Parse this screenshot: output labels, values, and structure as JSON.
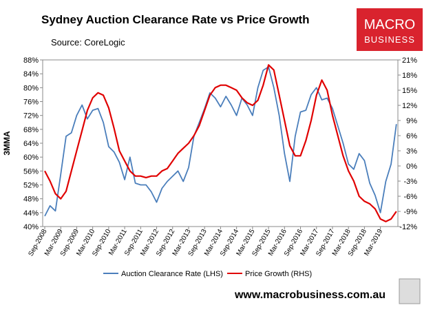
{
  "chart_data": {
    "type": "line",
    "title": "Sydney Auction Clearance Rate vs Price Growth",
    "subtitle": "Source: CoreLogic",
    "y_label": "3MMA",
    "categories": [
      "Sep-2008",
      null,
      null,
      "Mar-2009",
      null,
      null,
      "Sep-2009",
      null,
      null,
      "Mar-2010",
      null,
      null,
      "Sep-2010",
      null,
      null,
      "Mar-2011",
      null,
      null,
      "Sep-2011",
      null,
      null,
      "Mar-2012",
      null,
      null,
      "Sep-2012",
      null,
      null,
      "Mar-2013",
      null,
      null,
      "Sep-2013",
      null,
      null,
      "Mar-2014",
      null,
      null,
      "Sep-2014",
      null,
      null,
      "Mar-2015",
      null,
      null,
      "Sep-2015",
      null,
      null,
      "Mar-2016",
      null,
      null,
      "Sep-2016",
      null,
      null,
      "Mar-2017",
      null,
      null,
      "Sep-2017",
      null,
      null,
      "Mar-2018",
      null,
      null,
      "Sep-2018",
      null,
      null,
      "Mar-2019",
      null,
      null,
      null
    ],
    "series": [
      {
        "name": "Auction Clearance Rate (LHS)",
        "color": "#4a7ebb",
        "axis": "y",
        "values": [
          43,
          46,
          44.5,
          55,
          66,
          67,
          72,
          75,
          71,
          73.5,
          74,
          70,
          63,
          61.5,
          58.5,
          53.5,
          60,
          52.5,
          52,
          52,
          50,
          47,
          51,
          53,
          54.5,
          56,
          53,
          57,
          66,
          70,
          74,
          78.5,
          77,
          74.5,
          77.5,
          75,
          72,
          77,
          75,
          72,
          80,
          85,
          86,
          80,
          72,
          61,
          53,
          66,
          73,
          73.5,
          78,
          80,
          76.5,
          77,
          74,
          69,
          64,
          58,
          56.5,
          61,
          59,
          52.5,
          49,
          44,
          53,
          58,
          69.5
        ]
      },
      {
        "name": "Price Growth (RHS)",
        "color": "#e00000",
        "axis": "y2",
        "values": [
          -1,
          -3,
          -5.5,
          -6.5,
          -5,
          -1,
          3,
          7,
          11,
          13.5,
          14.5,
          14,
          11.5,
          7.5,
          3,
          1,
          -1,
          -2,
          -2,
          -2.3,
          -2,
          -2,
          -1,
          -0.5,
          1,
          2.5,
          3.5,
          4.5,
          6,
          8,
          11,
          14,
          15.5,
          16,
          16,
          15.5,
          15,
          13.5,
          12.5,
          12,
          13,
          16,
          20,
          19,
          14,
          9,
          4,
          2,
          2,
          5,
          9,
          14,
          17,
          15,
          10,
          6,
          2,
          -1,
          -3,
          -6,
          -7,
          -7.5,
          -8.5,
          -10.5,
          -11,
          -10.5,
          -9
        ]
      }
    ],
    "ylim": [
      40,
      88
    ],
    "yticks": [
      {
        "value": 40,
        "label": "40%"
      },
      {
        "value": 44,
        "label": "44%"
      },
      {
        "value": 48,
        "label": "48%"
      },
      {
        "value": 52,
        "label": "52%"
      },
      {
        "value": 56,
        "label": "56%"
      },
      {
        "value": 60,
        "label": "60%"
      },
      {
        "value": 64,
        "label": "64%"
      },
      {
        "value": 68,
        "label": "68%"
      },
      {
        "value": 72,
        "label": "72%"
      },
      {
        "value": 76,
        "label": "76%"
      },
      {
        "value": 80,
        "label": "80%"
      },
      {
        "value": 84,
        "label": "84%"
      },
      {
        "value": 88,
        "label": "88%"
      }
    ],
    "y2lim": [
      -12,
      21
    ],
    "y2ticks": [
      {
        "value": -12,
        "label": "-12%"
      },
      {
        "value": -9,
        "label": "-9%"
      },
      {
        "value": -6,
        "label": "-6%"
      },
      {
        "value": -3,
        "label": "-3%"
      },
      {
        "value": 0,
        "label": "0%"
      },
      {
        "value": 3,
        "label": "3%"
      },
      {
        "value": 6,
        "label": "6%"
      },
      {
        "value": 9,
        "label": "9%"
      },
      {
        "value": 12,
        "label": "12%"
      },
      {
        "value": 15,
        "label": "15%"
      },
      {
        "value": 18,
        "label": "18%"
      },
      {
        "value": 21,
        "label": "21%"
      }
    ],
    "grid": false,
    "legend": "bottom"
  },
  "logo": {
    "line1": "MACRO",
    "line2": "BUSINESS"
  },
  "footer": "www.macrobusiness.com.au"
}
